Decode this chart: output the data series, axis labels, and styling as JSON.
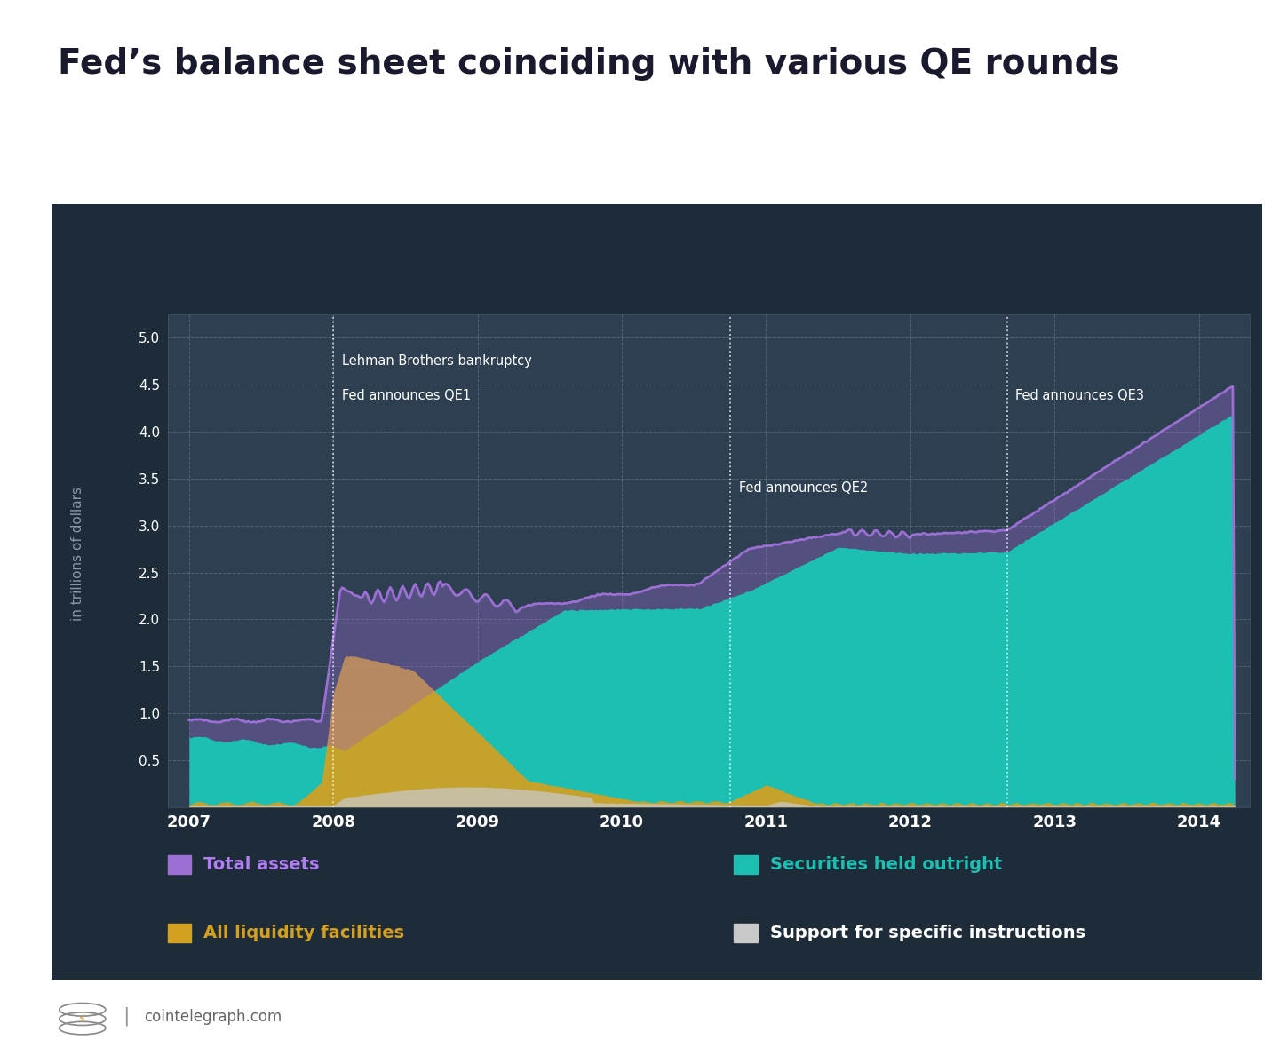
{
  "title": "Fed’s balance sheet coinciding with various QE rounds",
  "ylabel": "in trillions of dollars",
  "outer_bg": "#1e2c3a",
  "plot_bg": "#2d3f50",
  "white": "#ffffff",
  "gray": "#8899aa",
  "colors": {
    "total_assets": "#9b6fd4",
    "securities": "#1ebfb3",
    "liquidity": "#d4a020",
    "support": "#c8c8c8"
  },
  "legend_colors": {
    "total_assets": "#b07ef0",
    "securities": "#1ebfb3",
    "liquidity": "#d4a020",
    "support": "#ffffff"
  },
  "legend": {
    "total_assets": "Total assets",
    "securities": "Securities held outright",
    "liquidity": "All liquidity facilities",
    "support": "Support for specific instructions"
  },
  "xlim": [
    2006.85,
    2014.35
  ],
  "ylim": [
    0,
    5.25
  ],
  "yticks": [
    0.5,
    1.0,
    1.5,
    2.0,
    2.5,
    3.0,
    3.5,
    4.0,
    4.5,
    5.0
  ],
  "xticks": [
    2007,
    2008,
    2009,
    2010,
    2011,
    2012,
    2013,
    2014
  ],
  "footer": "cointelegraph.com",
  "ann_lehman_x": 2008.0,
  "ann_qe1_x": 2008.0,
  "ann_qe2_x": 2010.75,
  "ann_qe3_x": 2012.67
}
